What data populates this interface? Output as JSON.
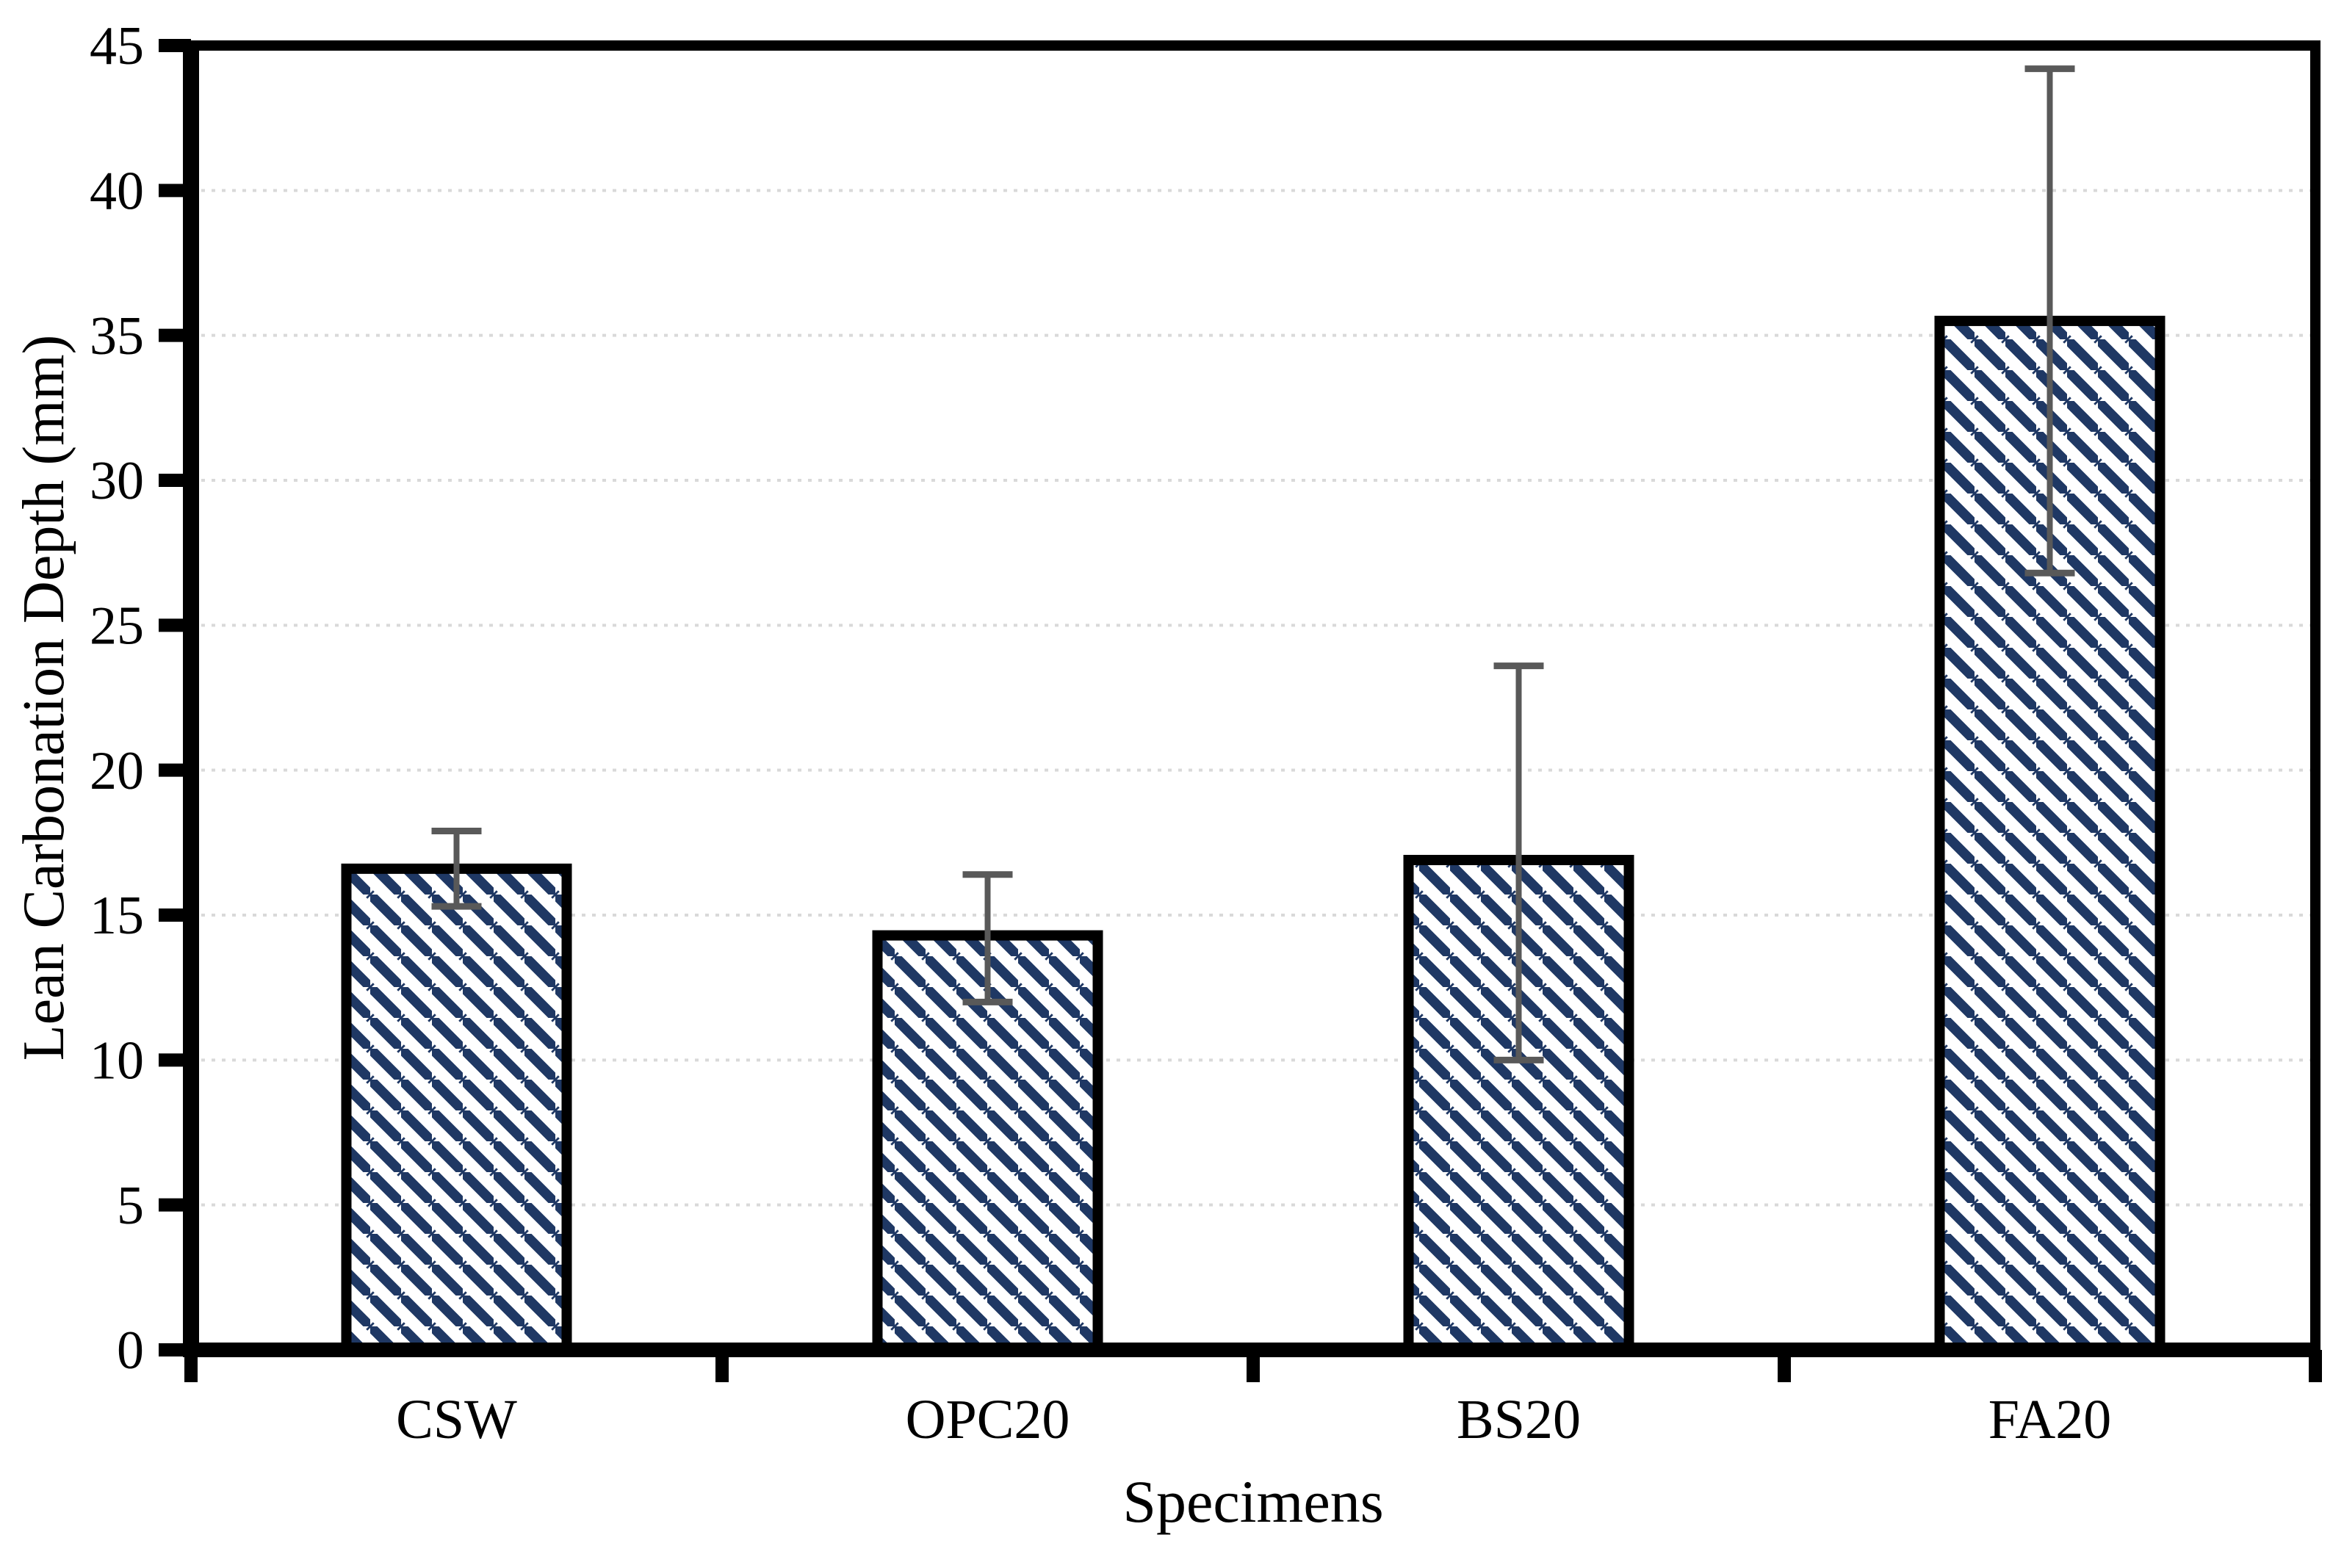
{
  "chart_data": {
    "type": "bar",
    "title": "",
    "xlabel": "Specimens",
    "ylabel": "Lean Carbonation Depth (mm)",
    "categories": [
      "CSW",
      "OPC20",
      "BS20",
      "FA20"
    ],
    "values": [
      16.6,
      14.3,
      16.9,
      35.5
    ],
    "error_top": [
      17.9,
      16.4,
      23.6,
      44.2
    ],
    "error_bottom": [
      15.3,
      12.0,
      10.0,
      26.8
    ],
    "ylim": [
      0,
      45
    ],
    "ytick_step": 5,
    "yticks": [
      "0",
      "5",
      "10",
      "15",
      "20",
      "25",
      "30",
      "35",
      "40",
      "45"
    ],
    "grid": "horizontal-dotted",
    "legend": "none",
    "colors": {
      "hatch": "#1F3864",
      "bar_background": "#FFFFFF",
      "bar_border": "#000000",
      "error_bar": "#595959",
      "gridline": "#D9D9D9",
      "axis": "#000000"
    },
    "bar_fill_style": "diagonal-backslash-hatch"
  }
}
